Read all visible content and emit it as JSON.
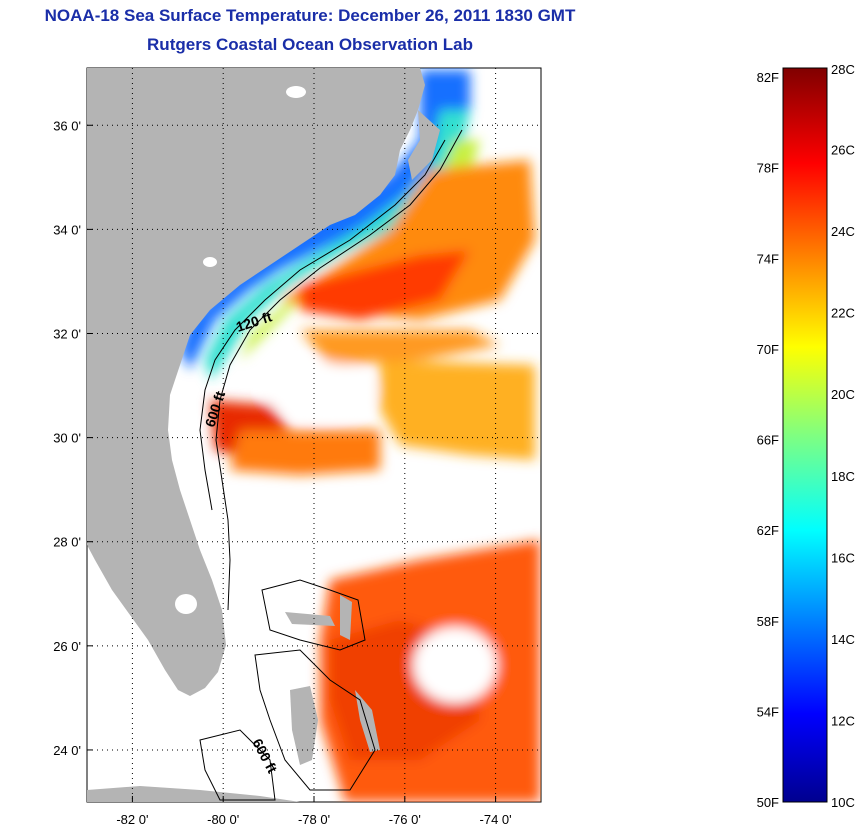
{
  "header": {
    "title": "NOAA-18 Sea Surface Temperature:  December 26, 2011 1830 GMT",
    "subtitle": "Rutgers Coastal Ocean Observation Lab"
  },
  "map": {
    "lat_labels": [
      "36 0'",
      "34 0'",
      "32 0'",
      "30 0'",
      "28 0'",
      "26 0'",
      "24 0'"
    ],
    "lon_labels": [
      "-82 0'",
      "-80 0'",
      "-78 0'",
      "-76 0'",
      "-74 0'"
    ],
    "lat_values": [
      36,
      34,
      32,
      30,
      28,
      26,
      24
    ],
    "lon_values": [
      -82,
      -80,
      -78,
      -76,
      -74
    ],
    "lat_range": [
      23,
      37.1
    ],
    "lon_range": [
      -83,
      -73
    ],
    "grid": "dotted",
    "land_color": "#b4b4b4",
    "contour_labels": {
      "shelf_120": "120 ft",
      "shelf_600_north": "600 ft",
      "shelf_600_south": "600 ft"
    }
  },
  "colorbar": {
    "fahrenheit_labels": [
      "82F",
      "78F",
      "74F",
      "70F",
      "66F",
      "62F",
      "58F",
      "54F",
      "50F"
    ],
    "celsius_labels": [
      "28C",
      "26C",
      "24C",
      "22C",
      "20C",
      "18C",
      "16C",
      "14C",
      "12C",
      "10C"
    ],
    "range_c": [
      10,
      28
    ],
    "colormap": "jet"
  }
}
